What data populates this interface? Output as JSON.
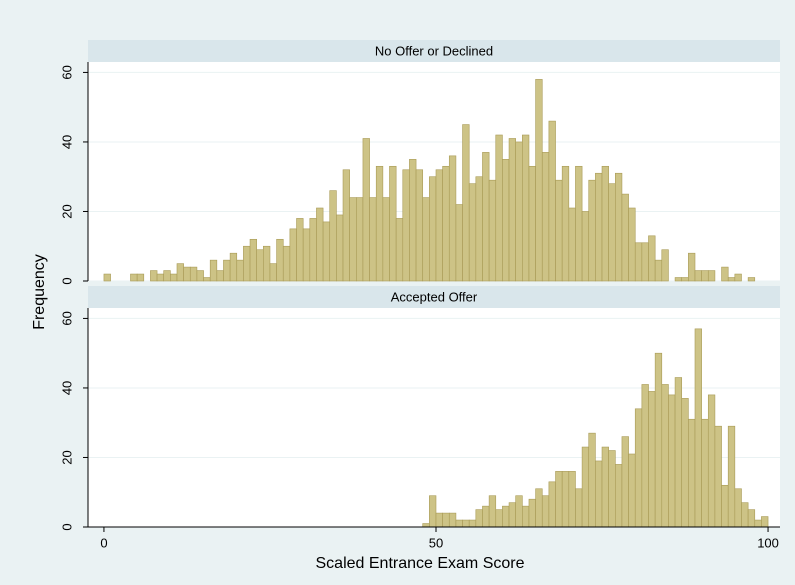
{
  "chart_data": [
    {
      "type": "histogram",
      "title": "No Offer or Declined",
      "y_label": "Frequency",
      "color": "#cdc386",
      "bins": [
        0,
        1,
        2,
        3,
        4,
        5,
        6,
        7,
        8,
        9,
        10,
        11,
        12,
        13,
        14,
        15,
        16,
        17,
        18,
        19,
        20,
        21,
        22,
        23,
        24,
        25,
        26,
        27,
        28,
        29,
        30,
        31,
        32,
        33,
        34,
        35,
        36,
        37,
        38,
        39,
        40,
        41,
        42,
        43,
        44,
        45,
        46,
        47,
        48,
        49,
        50,
        51,
        52,
        53,
        54,
        55,
        56,
        57,
        58,
        59,
        60,
        61,
        62,
        63,
        64,
        65,
        66,
        67,
        68,
        69,
        70,
        71,
        72,
        73,
        74,
        75,
        76,
        77,
        78,
        79,
        80,
        81,
        82,
        83,
        84,
        85,
        86,
        87,
        88,
        89,
        90,
        91,
        92,
        93,
        94,
        95,
        96,
        97,
        98,
        99,
        100
      ],
      "values": [
        2,
        0,
        0,
        0,
        2,
        2,
        0,
        3,
        2,
        3,
        2,
        5,
        4,
        4,
        3,
        1,
        6,
        3,
        6,
        8,
        6,
        10,
        12,
        9,
        10,
        5,
        12,
        10,
        15,
        18,
        15,
        18,
        21,
        17,
        26,
        19,
        32,
        24,
        24,
        41,
        24,
        33,
        24,
        33,
        18,
        32,
        35,
        32,
        24,
        30,
        32,
        33,
        36,
        22,
        45,
        28,
        30,
        37,
        29,
        42,
        35,
        41,
        40,
        42,
        33,
        58,
        37,
        46,
        29,
        33,
        21,
        33,
        20,
        29,
        31,
        33,
        28,
        31,
        25,
        21,
        11,
        11,
        13,
        6,
        9,
        0,
        1,
        1,
        8,
        3,
        3,
        3,
        0,
        4,
        1,
        2,
        0,
        1,
        0,
        0
      ],
      "xlim": [
        -2.4,
        101.8
      ],
      "ylim": [
        0,
        63
      ],
      "yticks": [
        0,
        20,
        40,
        60
      ],
      "grid": true
    },
    {
      "type": "histogram",
      "title": "Accepted Offer",
      "x_label": "Scaled Entrance Exam Score",
      "color": "#cdc386",
      "bins": [
        0,
        1,
        2,
        3,
        4,
        5,
        6,
        7,
        8,
        9,
        10,
        11,
        12,
        13,
        14,
        15,
        16,
        17,
        18,
        19,
        20,
        21,
        22,
        23,
        24,
        25,
        26,
        27,
        28,
        29,
        30,
        31,
        32,
        33,
        34,
        35,
        36,
        37,
        38,
        39,
        40,
        41,
        42,
        43,
        44,
        45,
        46,
        47,
        48,
        49,
        50,
        51,
        52,
        53,
        54,
        55,
        56,
        57,
        58,
        59,
        60,
        61,
        62,
        63,
        64,
        65,
        66,
        67,
        68,
        69,
        70,
        71,
        72,
        73,
        74,
        75,
        76,
        77,
        78,
        79,
        80,
        81,
        82,
        83,
        84,
        85,
        86,
        87,
        88,
        89,
        90,
        91,
        92,
        93,
        94,
        95,
        96,
        97,
        98,
        99,
        100
      ],
      "values": [
        0,
        0,
        0,
        0,
        0,
        0,
        0,
        0,
        0,
        0,
        0,
        0,
        0,
        0,
        0,
        0,
        0,
        0,
        0,
        0,
        0,
        0,
        0,
        0,
        0,
        0,
        0,
        0,
        0,
        0,
        0,
        0,
        0,
        0,
        0,
        0,
        0,
        0,
        0,
        0,
        0,
        0,
        0,
        0,
        0,
        0,
        0,
        0,
        1,
        9,
        4,
        4,
        4,
        2,
        2,
        2,
        5,
        6,
        9,
        5,
        6,
        7,
        9,
        6,
        8,
        11,
        9,
        13,
        16,
        16,
        16,
        11,
        23,
        27,
        19,
        23,
        22,
        18,
        26,
        21,
        34,
        41,
        39,
        50,
        41,
        38,
        43,
        37,
        31,
        57,
        31,
        38,
        29,
        12,
        29,
        11,
        7,
        5,
        2,
        3
      ],
      "xlim": [
        -2.4,
        101.8
      ],
      "ylim": [
        0,
        63
      ],
      "yticks": [
        0,
        20,
        40,
        60
      ],
      "xticks": [
        0,
        50,
        100
      ],
      "grid": true
    }
  ]
}
